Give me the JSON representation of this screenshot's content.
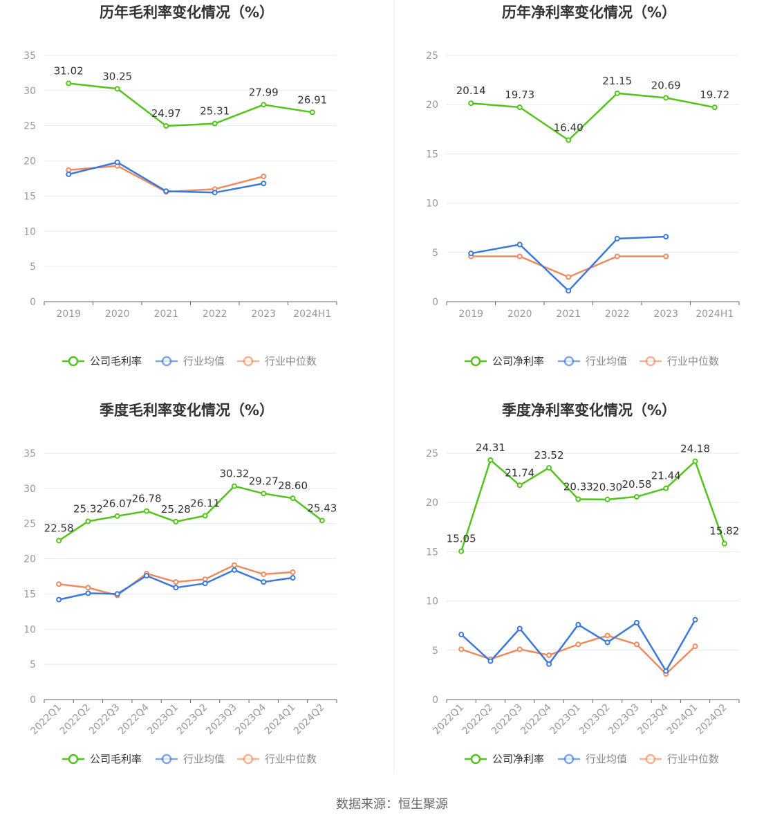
{
  "footer": {
    "source": "数据来源：恒生聚源"
  },
  "colors": {
    "company": "#52c41a",
    "avg": "#3a78dc",
    "median": "#f08a5d",
    "grid": "#e4e8f2",
    "axis": "#666666"
  },
  "chart_data": [
    {
      "id": "annual-gross",
      "type": "line",
      "title": "历年毛利率变化情况（%）",
      "categories": [
        "2019",
        "2020",
        "2021",
        "2022",
        "2023",
        "2024H1"
      ],
      "ylim": [
        0,
        35
      ],
      "yticks": [
        0,
        5,
        10,
        15,
        20,
        25,
        30,
        35
      ],
      "rotate_x": false,
      "series": [
        {
          "key": "company",
          "name": "公司毛利率",
          "values": [
            31.02,
            30.25,
            24.97,
            25.31,
            27.99,
            26.91
          ],
          "labels": [
            "31.02",
            "30.25",
            "24.97",
            "25.31",
            "27.99",
            "26.91"
          ]
        },
        {
          "key": "avg",
          "name": "行业均值",
          "values": [
            18.1,
            19.8,
            15.7,
            15.5,
            16.8,
            null
          ]
        },
        {
          "key": "median",
          "name": "行业中位数",
          "values": [
            18.7,
            19.3,
            15.6,
            16.0,
            17.8,
            null
          ]
        }
      ]
    },
    {
      "id": "annual-net",
      "type": "line",
      "title": "历年净利率变化情况（%）",
      "categories": [
        "2019",
        "2020",
        "2021",
        "2022",
        "2023",
        "2024H1"
      ],
      "ylim": [
        0,
        25
      ],
      "yticks": [
        0,
        5,
        10,
        15,
        20,
        25
      ],
      "rotate_x": false,
      "series": [
        {
          "key": "company",
          "name": "公司净利率",
          "values": [
            20.14,
            19.73,
            16.4,
            21.15,
            20.69,
            19.72
          ],
          "labels": [
            "20.14",
            "19.73",
            "16.40",
            "21.15",
            "20.69",
            "19.72"
          ]
        },
        {
          "key": "avg",
          "name": "行业均值",
          "values": [
            4.9,
            5.8,
            1.1,
            6.4,
            6.6,
            null
          ]
        },
        {
          "key": "median",
          "name": "行业中位数",
          "values": [
            4.6,
            4.6,
            2.5,
            4.6,
            4.6,
            null
          ]
        }
      ]
    },
    {
      "id": "quarterly-gross",
      "type": "line",
      "title": "季度毛利率变化情况（%）",
      "categories": [
        "2022Q1",
        "2022Q2",
        "2022Q3",
        "2022Q4",
        "2023Q1",
        "2023Q2",
        "2023Q3",
        "2023Q4",
        "2024Q1",
        "2024Q2"
      ],
      "ylim": [
        0,
        35
      ],
      "yticks": [
        0,
        5,
        10,
        15,
        20,
        25,
        30,
        35
      ],
      "rotate_x": true,
      "series": [
        {
          "key": "company",
          "name": "公司毛利率",
          "values": [
            22.58,
            25.32,
            26.07,
            26.78,
            25.28,
            26.11,
            30.32,
            29.27,
            28.6,
            25.43
          ],
          "labels": [
            "22.58",
            "25.32",
            "26.07",
            "26.78",
            "25.28",
            "26.11",
            "30.32",
            "29.27",
            "28.60",
            "25.43"
          ]
        },
        {
          "key": "avg",
          "name": "行业均值",
          "values": [
            14.2,
            15.1,
            15.0,
            17.6,
            15.9,
            16.5,
            18.4,
            16.7,
            17.3,
            null
          ]
        },
        {
          "key": "median",
          "name": "行业中位数",
          "values": [
            16.4,
            15.9,
            14.8,
            17.9,
            16.7,
            17.1,
            19.1,
            17.8,
            18.1,
            null
          ]
        }
      ]
    },
    {
      "id": "quarterly-net",
      "type": "line",
      "title": "季度净利率变化情况（%）",
      "categories": [
        "2022Q1",
        "2022Q2",
        "2022Q3",
        "2022Q4",
        "2023Q1",
        "2023Q2",
        "2023Q3",
        "2023Q4",
        "2024Q1",
        "2024Q2"
      ],
      "ylim": [
        0,
        25
      ],
      "yticks": [
        0,
        5,
        10,
        15,
        20,
        25
      ],
      "rotate_x": true,
      "series": [
        {
          "key": "company",
          "name": "公司净利率",
          "values": [
            15.05,
            24.31,
            21.74,
            23.52,
            20.33,
            20.3,
            20.58,
            21.44,
            24.18,
            15.82
          ],
          "labels": [
            "15.05",
            "24.31",
            "21.74",
            "23.52",
            "20.33",
            "20.30",
            "20.58",
            "21.44",
            "24.18",
            "15.82"
          ]
        },
        {
          "key": "avg",
          "name": "行业均值",
          "values": [
            6.6,
            3.9,
            7.2,
            3.6,
            7.6,
            5.8,
            7.8,
            2.9,
            8.1,
            null
          ]
        },
        {
          "key": "median",
          "name": "行业中位数",
          "values": [
            5.1,
            4.1,
            5.1,
            4.5,
            5.6,
            6.5,
            5.6,
            2.6,
            5.4,
            null
          ]
        }
      ]
    }
  ]
}
